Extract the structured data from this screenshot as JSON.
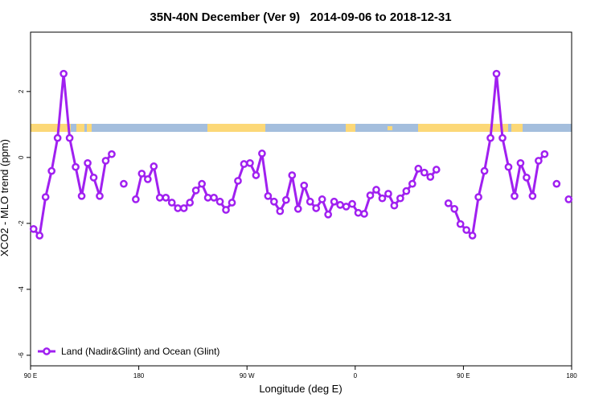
{
  "chart_data": {
    "type": "line",
    "title": "35N-40N December (Ver 9)   2014-09-06 to 2018-12-31",
    "x_label": "Longitude (deg E)",
    "y_label": "XCO2 - MLO trend (ppm)",
    "xlim": [
      90,
      540
    ],
    "xticks": [
      {
        "value": 90,
        "label": "90 E"
      },
      {
        "value": 180,
        "label": "180"
      },
      {
        "value": 270,
        "label": "90 W"
      },
      {
        "value": 360,
        "label": "0"
      },
      {
        "value": 450,
        "label": "90 E"
      },
      {
        "value": 540,
        "label": "180"
      }
    ],
    "ylim": [
      -6.32,
      3.8
    ],
    "yticks": [
      -6,
      -4,
      -2,
      0,
      2
    ],
    "legend": "bottom-left",
    "x": [
      92.5,
      97.5,
      102.5,
      107.5,
      112.5,
      117.5,
      122.5,
      127.5,
      132.5,
      137.5,
      142.5,
      147.5,
      152.5,
      157.5,
      162.5,
      167.5,
      172.5,
      177.5,
      182.5,
      187.5,
      192.5,
      197.5,
      202.5,
      207.5,
      212.5,
      217.5,
      222.5,
      227.5,
      232.5,
      237.5,
      242.5,
      247.5,
      252.5,
      257.5,
      262.5,
      267.5,
      272.5,
      277.5,
      282.5,
      287.5,
      292.5,
      297.5,
      302.5,
      307.5,
      312.5,
      317.5,
      322.5,
      327.5,
      332.5,
      337.5,
      342.5,
      347.5,
      352.5,
      357.5,
      362.5,
      367.5,
      372.5,
      377.5,
      382.5,
      387.5,
      392.5,
      397.5,
      402.5,
      407.5,
      412.5,
      417.5,
      422.5,
      427.5,
      432.5,
      437.5,
      442.5,
      447.5,
      452.5,
      457.5,
      462.5,
      467.5,
      472.5,
      477.5,
      482.5,
      487.5,
      492.5,
      497.5,
      502.5,
      507.5,
      512.5,
      517.5,
      522.5,
      527.5,
      532.5,
      537.5
    ],
    "series": [
      {
        "name": "Land (Nadir&Glint) and Ocean (Glint)",
        "color": "#a020f0",
        "values": [
          -2.17,
          -2.37,
          -1.2,
          -0.41,
          0.59,
          2.54,
          0.59,
          -0.29,
          -1.17,
          -0.17,
          -0.61,
          -1.17,
          -0.1,
          0.1,
          null,
          -0.8,
          null,
          -1.27,
          -0.49,
          -0.66,
          -0.27,
          -1.22,
          -1.22,
          -1.37,
          -1.54,
          -1.54,
          -1.37,
          -1.0,
          -0.8,
          -1.22,
          -1.22,
          -1.34,
          -1.59,
          -1.37,
          -0.71,
          -0.2,
          -0.17,
          -0.54,
          0.12,
          -1.17,
          -1.34,
          -1.63,
          -1.29,
          -0.54,
          -1.56,
          -0.85,
          -1.34,
          -1.54,
          -1.27,
          -1.73,
          -1.34,
          -1.44,
          -1.49,
          -1.41,
          -1.68,
          -1.71,
          -1.15,
          -0.98,
          -1.24,
          -1.1,
          -1.46,
          -1.24,
          -1.02,
          -0.8,
          -0.34,
          -0.46,
          -0.59,
          -0.37,
          null,
          -1.39,
          -1.56,
          -2.02,
          -2.2,
          -2.37,
          -1.2,
          -0.41,
          0.59,
          2.54,
          0.59,
          -0.29,
          -1.17,
          -0.17,
          -0.61,
          -1.17,
          -0.1,
          0.1,
          null,
          -0.8,
          null,
          -1.27
        ]
      }
    ]
  }
}
